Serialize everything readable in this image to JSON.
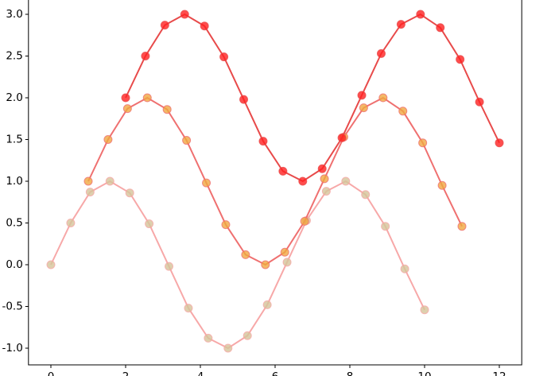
{
  "chart_data": {
    "type": "line",
    "series": [
      {
        "x": [
          0,
          0.53,
          1.05,
          1.58,
          2.11,
          2.63,
          3.16,
          3.68,
          4.21,
          4.74,
          5.26,
          5.79,
          6.32,
          6.84,
          7.37,
          7.89,
          8.42,
          8.95,
          9.47,
          10
        ],
        "values": [
          0,
          0.5,
          0.87,
          1.0,
          0.86,
          0.49,
          -0.02,
          -0.52,
          -0.88,
          -1.0,
          -0.85,
          -0.48,
          0.03,
          0.53,
          0.88,
          1.0,
          0.84,
          0.46,
          -0.05,
          -0.54
        ],
        "color": "#f7a8a8",
        "marker_color": "#d4c49a"
      },
      {
        "x": [
          1,
          1.53,
          2.05,
          2.58,
          3.11,
          3.63,
          4.16,
          4.68,
          5.21,
          5.74,
          6.26,
          6.79,
          7.32,
          7.84,
          8.37,
          8.89,
          9.42,
          9.95,
          10.47,
          11
        ],
        "values": [
          1.0,
          1.5,
          1.87,
          2.0,
          1.86,
          1.49,
          0.98,
          0.48,
          0.12,
          0.0,
          0.15,
          0.52,
          1.03,
          1.53,
          1.88,
          2.0,
          1.84,
          1.46,
          0.95,
          0.46
        ],
        "color": "#ef7070",
        "marker_color": "#f0a840"
      },
      {
        "x": [
          2,
          2.53,
          3.05,
          3.58,
          4.11,
          4.63,
          5.16,
          5.68,
          6.21,
          6.74,
          7.26,
          7.79,
          8.32,
          8.84,
          9.37,
          9.89,
          10.42,
          10.95,
          11.47,
          12
        ],
        "values": [
          2.0,
          2.5,
          2.87,
          3.0,
          2.86,
          2.49,
          1.98,
          1.48,
          1.12,
          1.0,
          1.15,
          1.52,
          2.03,
          2.53,
          2.88,
          3.0,
          2.84,
          2.46,
          1.95,
          1.46
        ],
        "color": "#e84a4a",
        "marker_color": "#ff2020"
      }
    ],
    "xlim": [
      -0.6,
      12.6
    ],
    "xticks": [
      0,
      2,
      4,
      6,
      8,
      10,
      12
    ],
    "ylim": [
      -1.2,
      3.2
    ],
    "yticks": [
      {
        "value": -1,
        "label": "-1.0"
      },
      {
        "value": -0.5,
        "label": "-0.5"
      },
      {
        "value": 0,
        "label": "0.0"
      },
      {
        "value": 0.5,
        "label": "0.5"
      },
      {
        "value": 1,
        "label": "1.0"
      },
      {
        "value": 1.5,
        "label": "1.5"
      },
      {
        "value": 2,
        "label": "2.0"
      },
      {
        "value": 2.5,
        "label": "2.5"
      },
      {
        "value": 3,
        "label": "3.0"
      }
    ]
  }
}
